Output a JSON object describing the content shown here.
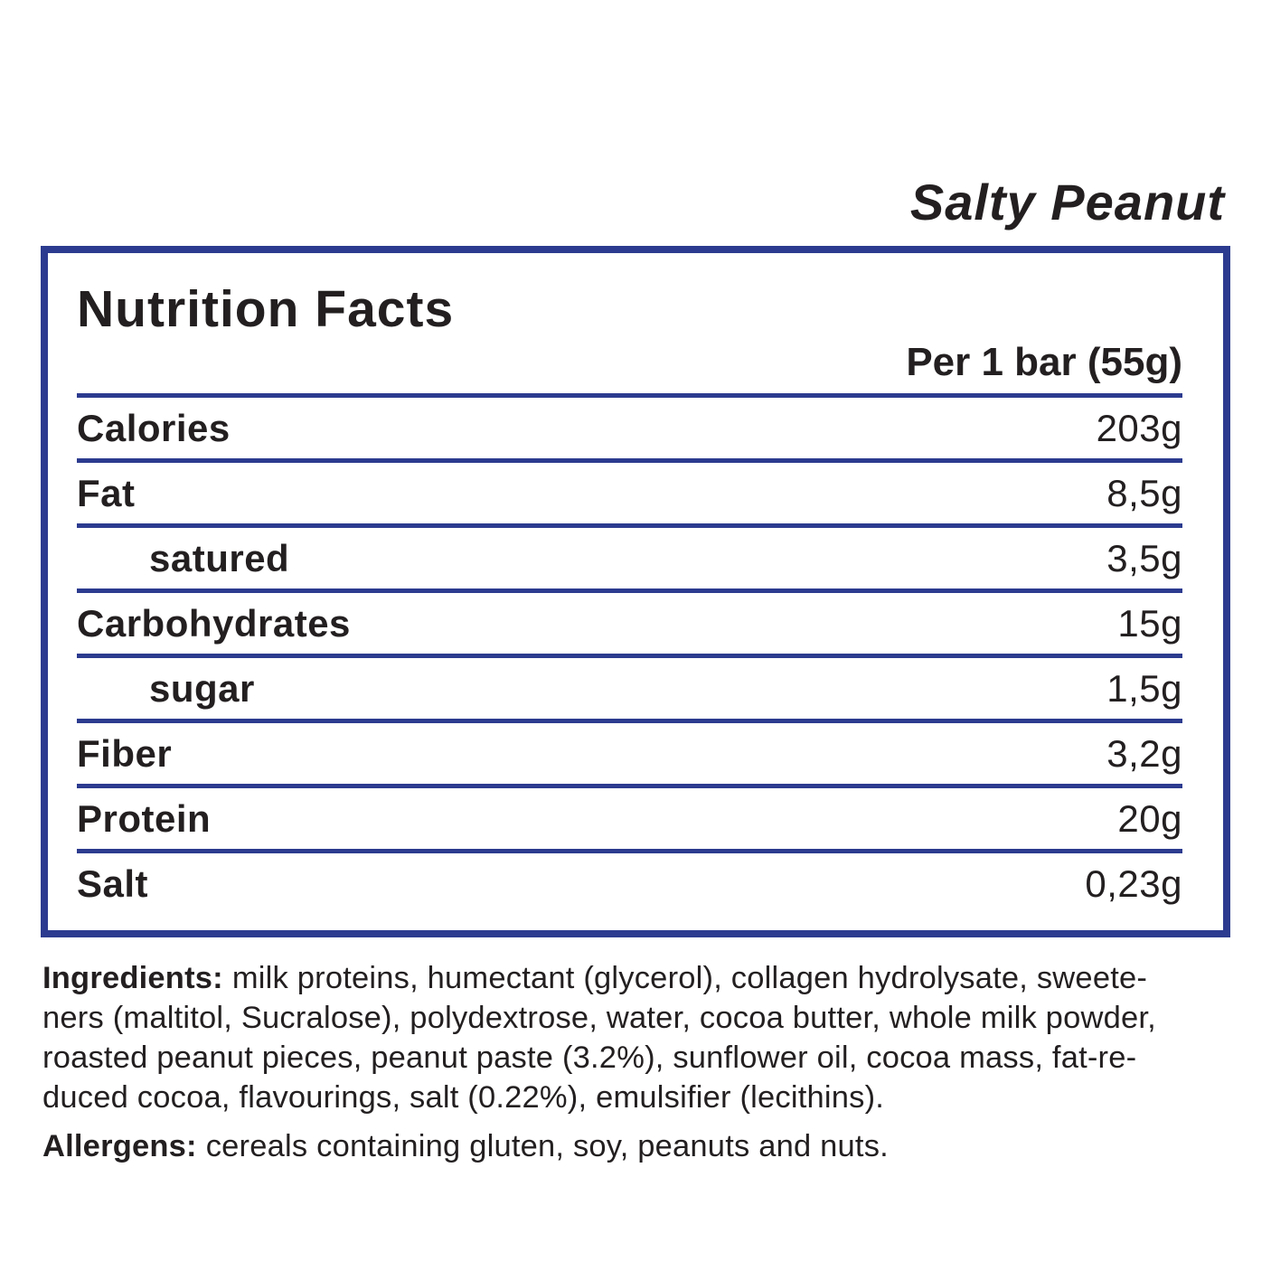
{
  "header": {
    "flavor": "Salty Peanut"
  },
  "panel": {
    "title": "Nutrition Facts",
    "serving": "Per 1 bar (55g)",
    "rows": [
      {
        "label": "Calories",
        "value": "203g"
      },
      {
        "label": "Fat",
        "value": "8,5g"
      },
      {
        "label": "satured",
        "value": "3,5g"
      },
      {
        "label": "Carbohydrates",
        "value": "15g"
      },
      {
        "label": "sugar",
        "value": "1,5g"
      },
      {
        "label": "Fiber",
        "value": "3,2g"
      },
      {
        "label": "Protein",
        "value": "20g"
      },
      {
        "label": "Salt",
        "value": "0,23g"
      }
    ]
  },
  "ingredients": {
    "label": "Ingredients:",
    "lines": [
      "milk proteins, humectant (glycerol), collagen hydrolysate, sweete-",
      "ners (maltitol, Sucralose), polydextrose, water, cocoa butter, whole milk powder,",
      "roasted peanut pieces, peanut paste (3.2%), sunflower oil, cocoa mass, fat-re-",
      "duced cocoa, flavourings, salt (0.22%), emulsifier (lecithins)."
    ]
  },
  "allergens": {
    "label": "Allergens:",
    "text": "cereals containing gluten, soy, peanuts and nuts."
  },
  "colors": {
    "accent_blue": "#2c3b8f",
    "text": "#231f20",
    "background": "#ffffff"
  }
}
